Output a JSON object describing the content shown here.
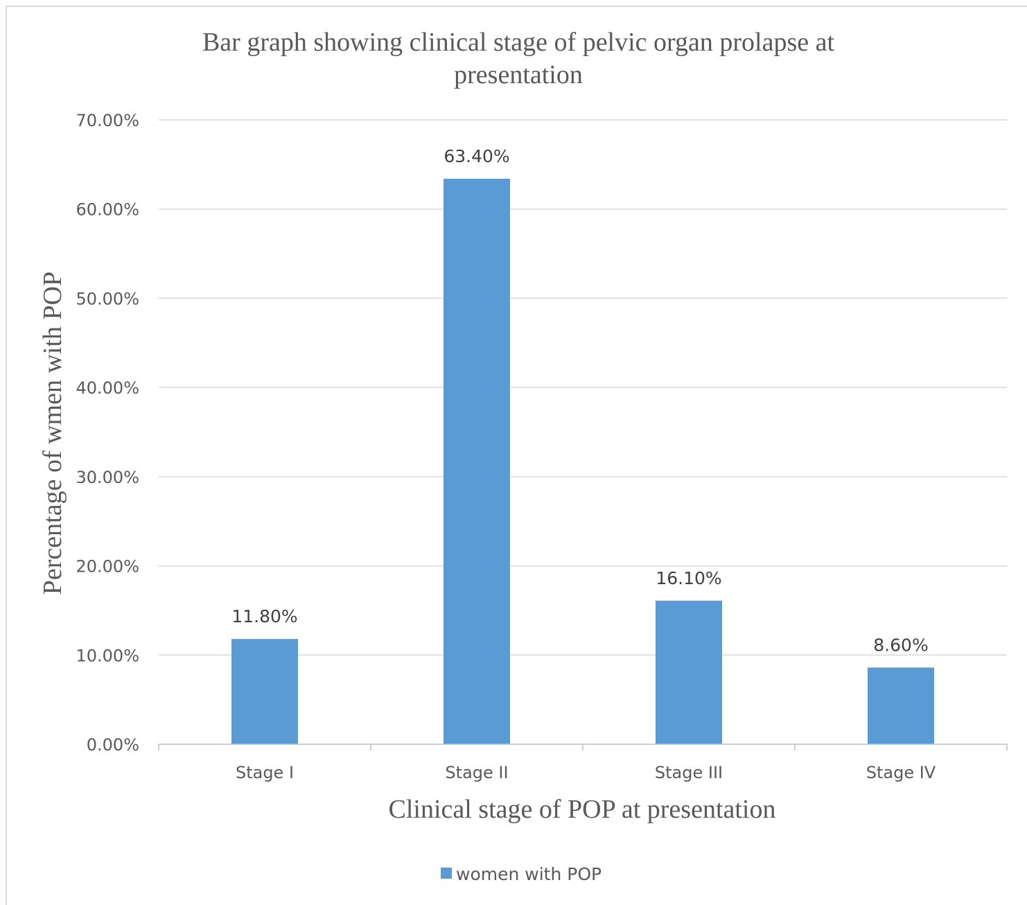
{
  "chart_data": {
    "type": "bar",
    "title_line1": "Bar graph showing clinical  stage of pelvic organ prolapse at",
    "title_line2": "presentation",
    "xlabel": "Clinical stage of POP at presentation",
    "ylabel": "Percentage of wmen with POP",
    "categories": [
      "Stage I",
      "Stage II",
      "Stage III",
      "Stage IV"
    ],
    "series": [
      {
        "name": "women with POP",
        "values": [
          11.8,
          63.4,
          16.1,
          8.6
        ],
        "labels": [
          "11.80%",
          "63.40%",
          "16.10%",
          "8.60%"
        ]
      }
    ],
    "ylim": [
      0,
      70
    ],
    "yticks": [
      "0.00%",
      "10.00%",
      "20.00%",
      "30.00%",
      "40.00%",
      "50.00%",
      "60.00%",
      "70.00%"
    ],
    "grid": true,
    "legend_position": "bottom",
    "colors": {
      "bar": "#5b9bd5",
      "grid": "#d9d9d9",
      "axis": "#bfbfbf",
      "text": "#595959"
    }
  }
}
